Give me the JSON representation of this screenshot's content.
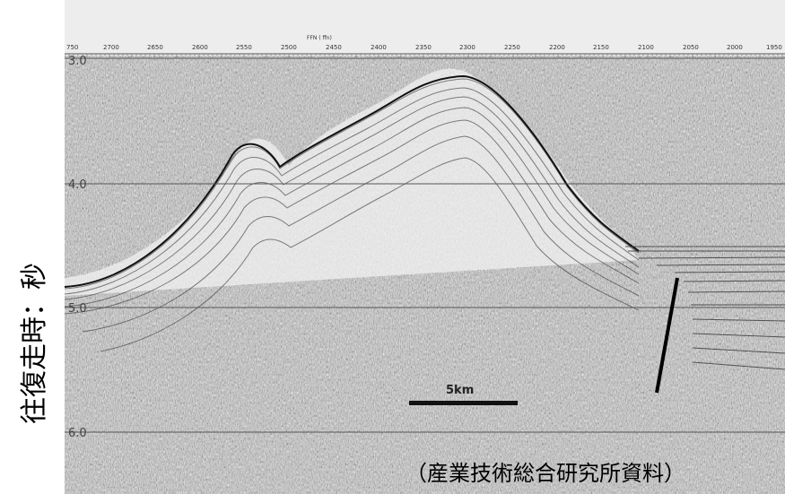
{
  "y_axis_label": "往復走時：秒",
  "x_axis_title": "FFN ( ffn)",
  "x_ticks": [
    "750",
    "2700",
    "2650",
    "2600",
    "2550",
    "2500",
    "2450",
    "2400",
    "2350",
    "2300",
    "2250",
    "2200",
    "2150",
    "2100",
    "2050",
    "2000",
    "1950"
  ],
  "twt_ticks": [
    "3.0",
    "4.0",
    "5.0",
    "6.0"
  ],
  "scale_bar_label": "5km",
  "credit": "（産業技術総合研究所資料）"
}
